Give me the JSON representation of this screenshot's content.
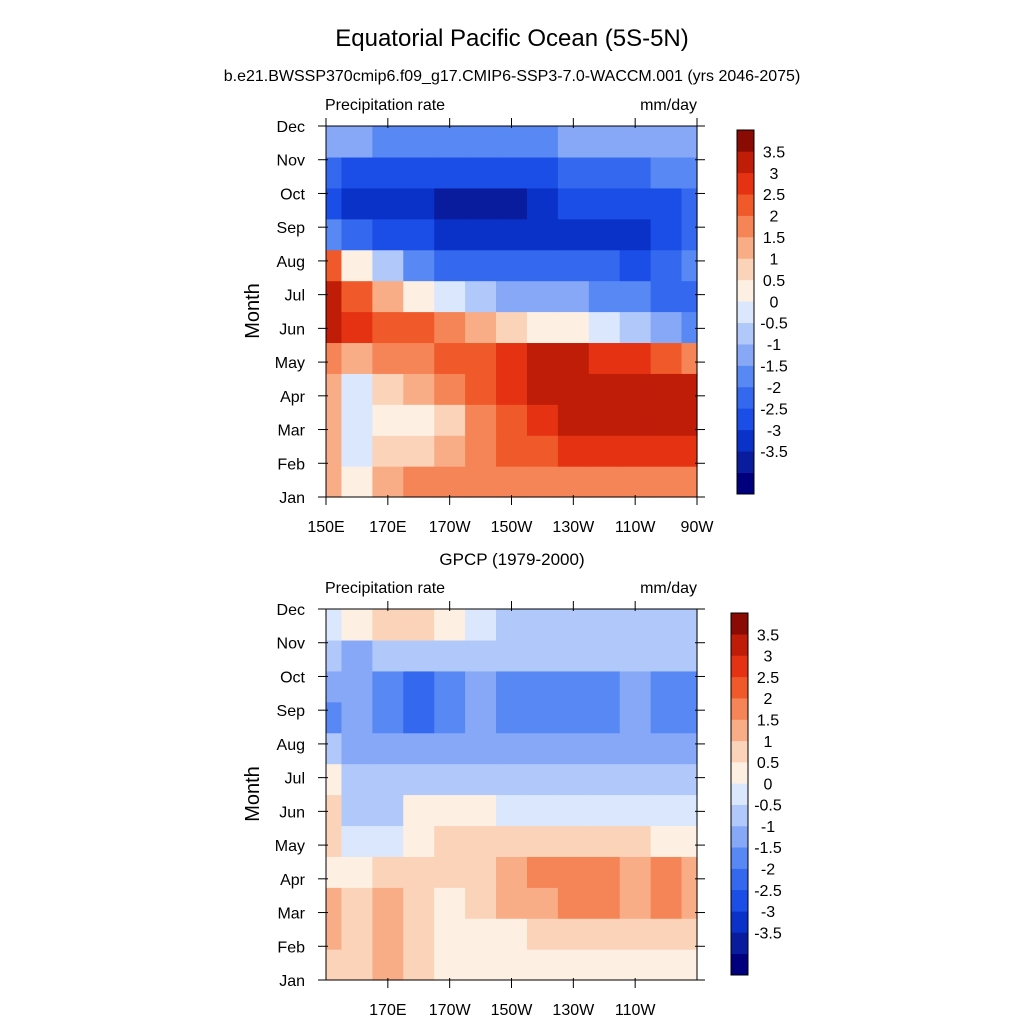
{
  "figure": {
    "title": "Equatorial Pacific Ocean (5S-5N)",
    "subtitle": "b.e21.BWSSP370cmip6.f09_g17.CMIP6-SSP3-7.0-WACCM.001 (yrs 2046-2075)"
  },
  "colors": {
    "levels": [
      "#00007f",
      "#0a1c9e",
      "#0b32c8",
      "#1a4ee6",
      "#3468ee",
      "#5788f3",
      "#86a8f7",
      "#b1c8fa",
      "#dae7fc",
      "#fdf0e3",
      "#fbd3b9",
      "#f9ad87",
      "#f58456",
      "#f05a2b",
      "#e53212",
      "#bf1d08",
      "#8a0b03"
    ],
    "lines": "#000000"
  },
  "colorbar": {
    "labels": [
      "3.5",
      "3",
      "2.5",
      "2",
      "1.5",
      "1",
      "0.5",
      "0",
      "-0.5",
      "-1",
      "-1.5",
      "-2",
      "-2.5",
      "-3",
      "-3.5"
    ]
  },
  "chart_data": [
    {
      "type": "heatmap",
      "title": "",
      "left_label": "Precipitation rate",
      "right_label": "mm/day",
      "ylabel": "Month",
      "xlabel": "",
      "x_ticks": [
        "150E",
        "170E",
        "170W",
        "150W",
        "130W",
        "110W",
        "90W"
      ],
      "x_values": [
        150,
        170,
        190,
        210,
        230,
        250,
        270
      ],
      "xlim": [
        150,
        270
      ],
      "y_ticks": [
        "Jan",
        "Feb",
        "Mar",
        "Apr",
        "May",
        "Jun",
        "Jul",
        "Aug",
        "Sep",
        "Oct",
        "Nov",
        "Dec"
      ],
      "x": [
        150,
        160,
        170,
        180,
        190,
        200,
        210,
        220,
        230,
        240,
        250,
        260,
        270
      ],
      "z": [
        [
          1.5,
          0.5,
          1.5,
          2.0,
          2.0,
          2.0,
          2.0,
          2.0,
          2.0,
          2.0,
          2.0,
          2.0,
          2.0
        ],
        [
          1.5,
          0.0,
          1.0,
          1.0,
          1.5,
          2.0,
          2.5,
          2.5,
          3.0,
          3.0,
          3.0,
          3.0,
          3.0
        ],
        [
          1.5,
          0.0,
          0.5,
          0.5,
          1.0,
          2.0,
          2.5,
          3.0,
          4.0,
          4.0,
          4.0,
          4.0,
          3.5
        ],
        [
          1.5,
          0.0,
          1.0,
          1.5,
          2.0,
          2.5,
          3.0,
          3.5,
          4.0,
          4.0,
          4.0,
          3.5,
          3.5
        ],
        [
          2.0,
          1.5,
          2.0,
          2.0,
          2.5,
          2.5,
          3.0,
          3.5,
          3.5,
          3.0,
          3.0,
          2.5,
          2.0
        ],
        [
          3.5,
          3.0,
          2.5,
          2.5,
          2.0,
          1.5,
          1.0,
          0.5,
          0.5,
          0.0,
          -0.5,
          -1.0,
          -1.5
        ],
        [
          4.0,
          2.5,
          1.5,
          0.5,
          0.0,
          -0.5,
          -1.0,
          -1.0,
          -1.0,
          -1.5,
          -1.5,
          -2.0,
          -2.0
        ],
        [
          2.5,
          0.5,
          -0.5,
          -1.5,
          -2.0,
          -2.0,
          -2.0,
          -2.0,
          -2.0,
          -2.0,
          -2.5,
          -2.0,
          -1.5
        ],
        [
          -1.5,
          -2.0,
          -2.5,
          -2.5,
          -3.0,
          -3.0,
          -3.0,
          -3.0,
          -3.0,
          -3.0,
          -3.0,
          -2.5,
          -2.0
        ],
        [
          -2.5,
          -3.0,
          -3.0,
          -3.0,
          -3.5,
          -3.5,
          -3.5,
          -3.0,
          -2.5,
          -2.5,
          -2.5,
          -2.5,
          -2.0
        ],
        [
          -2.0,
          -2.5,
          -2.5,
          -2.5,
          -2.5,
          -2.5,
          -2.5,
          -2.5,
          -2.0,
          -2.0,
          -2.0,
          -1.5,
          -1.5
        ],
        [
          -1.0,
          -1.0,
          -1.5,
          -1.5,
          -1.5,
          -1.5,
          -1.5,
          -1.5,
          -1.0,
          -1.0,
          -1.0,
          -1.0,
          -1.0
        ]
      ],
      "levels": [
        -3.5,
        -3,
        -2.5,
        -2,
        -1.5,
        -1,
        -0.5,
        0,
        0.5,
        1,
        1.5,
        2,
        2.5,
        3,
        3.5
      ]
    },
    {
      "type": "heatmap",
      "title": "GPCP (1979-2000)",
      "left_label": "Precipitation rate",
      "right_label": "mm/day",
      "ylabel": "Month",
      "xlabel": "",
      "x_ticks": [
        "170E",
        "170W",
        "150W",
        "130W",
        "110W"
      ],
      "x_values": [
        170,
        190,
        210,
        230,
        250
      ],
      "xlim": [
        150,
        270
      ],
      "y_ticks": [
        "Jan",
        "Feb",
        "Mar",
        "Apr",
        "May",
        "Jun",
        "Jul",
        "Aug",
        "Sep",
        "Oct",
        "Nov",
        "Dec"
      ],
      "x": [
        150,
        160,
        170,
        180,
        190,
        200,
        210,
        220,
        230,
        240,
        250,
        260,
        270
      ],
      "z": [
        [
          1.0,
          1.0,
          1.5,
          1.0,
          0.5,
          0.5,
          0.5,
          0.5,
          0.5,
          0.5,
          0.5,
          0.5,
          0.5
        ],
        [
          1.5,
          1.0,
          1.5,
          1.0,
          0.5,
          0.5,
          0.5,
          1.0,
          1.0,
          1.0,
          1.0,
          1.0,
          1.0
        ],
        [
          1.5,
          1.0,
          1.5,
          1.0,
          0.5,
          1.0,
          1.5,
          1.5,
          2.0,
          2.0,
          1.5,
          2.0,
          1.5
        ],
        [
          0.5,
          0.5,
          1.0,
          1.0,
          1.0,
          1.0,
          1.5,
          2.0,
          2.0,
          2.0,
          1.5,
          2.0,
          1.5
        ],
        [
          1.0,
          0.0,
          0.0,
          0.5,
          1.0,
          1.0,
          1.0,
          1.0,
          1.0,
          1.0,
          1.0,
          0.5,
          0.5
        ],
        [
          1.0,
          -0.5,
          -0.5,
          0.5,
          0.5,
          0.5,
          0.0,
          0.0,
          0.0,
          0.0,
          0.0,
          0.0,
          0.0
        ],
        [
          0.5,
          -0.5,
          -0.5,
          -0.5,
          -0.5,
          -0.5,
          -0.5,
          -0.5,
          -0.5,
          -0.5,
          -0.5,
          -0.5,
          -0.5
        ],
        [
          -0.5,
          -1.0,
          -1.0,
          -1.0,
          -1.0,
          -1.0,
          -1.0,
          -1.0,
          -1.0,
          -1.0,
          -1.0,
          -1.0,
          -1.0
        ],
        [
          -1.5,
          -1.0,
          -1.5,
          -2.0,
          -1.5,
          -1.0,
          -1.5,
          -1.5,
          -1.5,
          -1.5,
          -1.0,
          -1.5,
          -1.5
        ],
        [
          -1.0,
          -1.0,
          -1.5,
          -2.0,
          -1.5,
          -1.0,
          -1.5,
          -1.5,
          -1.5,
          -1.5,
          -1.0,
          -1.5,
          -1.5
        ],
        [
          -0.5,
          -1.0,
          -0.5,
          -0.5,
          -0.5,
          -0.5,
          -0.5,
          -0.5,
          -0.5,
          -0.5,
          -0.5,
          -0.5,
          -0.5
        ],
        [
          0.0,
          0.5,
          1.0,
          1.0,
          0.5,
          0.0,
          -0.5,
          -0.5,
          -0.5,
          -0.5,
          -0.5,
          -0.5,
          -0.5
        ]
      ],
      "levels": [
        -3.5,
        -3,
        -2.5,
        -2,
        -1.5,
        -1,
        -0.5,
        0,
        0.5,
        1,
        1.5,
        2,
        2.5,
        3,
        3.5
      ]
    }
  ]
}
